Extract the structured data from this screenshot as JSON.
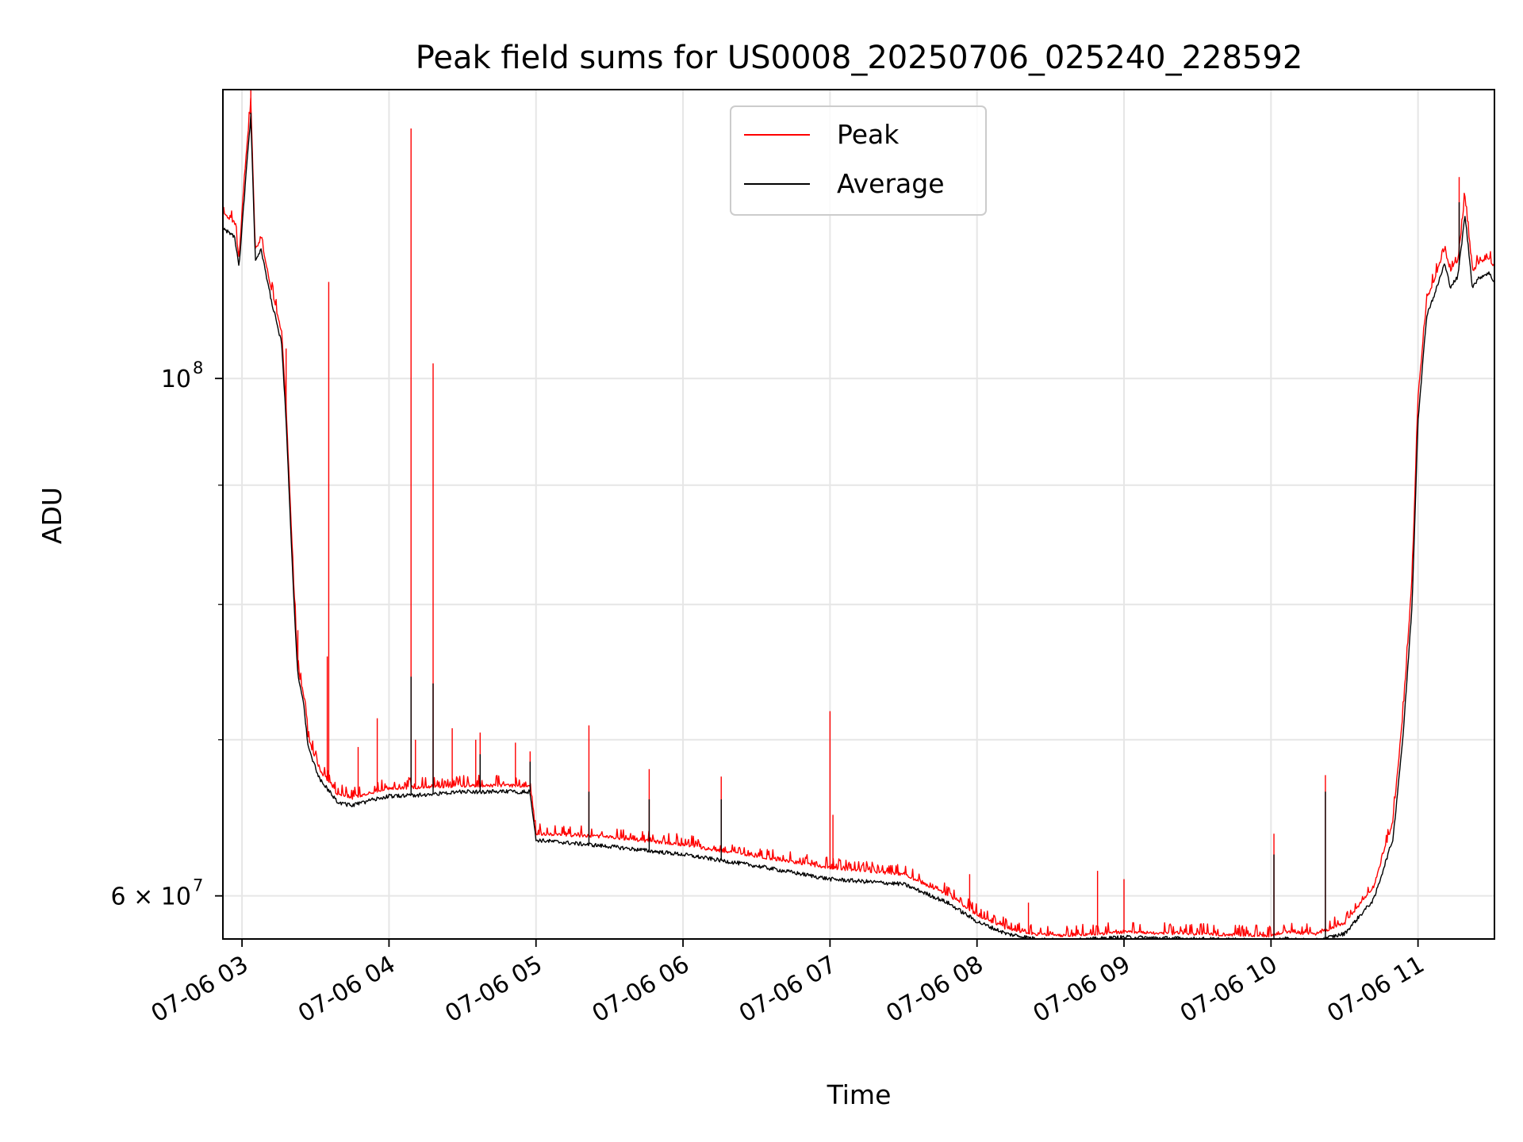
{
  "chart_data": {
    "type": "line",
    "title": "Peak field sums for US0008_20250706_025240_228592",
    "xlabel": "Time",
    "ylabel": "ADU",
    "yscale": "log",
    "xlim_hours": [
      2.87,
      11.52
    ],
    "ylim": [
      57500000,
      133000000
    ],
    "grid": true,
    "legend": {
      "placement": "upper center"
    },
    "x_ticks": [
      {
        "value": 3,
        "label": "07-06 03"
      },
      {
        "value": 4,
        "label": "07-06 04"
      },
      {
        "value": 5,
        "label": "07-06 05"
      },
      {
        "value": 6,
        "label": "07-06 06"
      },
      {
        "value": 7,
        "label": "07-06 07"
      },
      {
        "value": 8,
        "label": "07-06 08"
      },
      {
        "value": 9,
        "label": "07-06 09"
      },
      {
        "value": 10,
        "label": "07-06 10"
      },
      {
        "value": 11,
        "label": "07-06 11"
      }
    ],
    "y_major_ticks": [
      {
        "value": 60000000,
        "label_base": "6 × 10",
        "label_exp": "7"
      },
      {
        "value": 100000000,
        "label_base": "10",
        "label_exp": "8"
      }
    ],
    "y_minor_ticks": [
      70000000,
      80000000,
      90000000
    ],
    "series": [
      {
        "name": "Peak",
        "color": "#ff0000",
        "points": [
          [
            2.87,
            117500000
          ],
          [
            2.95,
            116500000
          ],
          [
            2.98,
            112500000
          ],
          [
            3.03,
            125000000
          ],
          [
            3.06,
            131000000
          ],
          [
            3.09,
            113500000
          ],
          [
            3.13,
            114500000
          ],
          [
            3.2,
            109000000
          ],
          [
            3.27,
            104500000
          ],
          [
            3.3,
            97000000
          ],
          [
            3.35,
            82000000
          ],
          [
            3.38,
            75000000
          ],
          [
            3.42,
            73000000
          ],
          [
            3.45,
            70000000
          ],
          [
            3.52,
            68000000
          ],
          [
            3.55,
            67500000
          ],
          [
            3.6,
            67000000
          ],
          [
            3.65,
            66200000
          ],
          [
            3.75,
            66000000
          ],
          [
            3.9,
            66400000
          ],
          [
            4.0,
            66600000
          ],
          [
            4.25,
            66700000
          ],
          [
            4.5,
            66800000
          ],
          [
            4.96,
            66800000
          ],
          [
            5.0,
            63700000
          ],
          [
            5.5,
            63500000
          ],
          [
            6.0,
            63000000
          ],
          [
            6.5,
            62300000
          ],
          [
            7.0,
            61600000
          ],
          [
            7.5,
            61200000
          ],
          [
            7.8,
            60000000
          ],
          [
            8.0,
            58800000
          ],
          [
            8.2,
            58000000
          ],
          [
            8.4,
            57700000
          ],
          [
            8.6,
            57600000
          ],
          [
            9.0,
            57800000
          ],
          [
            9.5,
            57700000
          ],
          [
            9.98,
            57600000
          ],
          [
            10.1,
            57800000
          ],
          [
            10.3,
            57700000
          ],
          [
            10.5,
            58300000
          ],
          [
            10.7,
            60500000
          ],
          [
            10.83,
            64500000
          ],
          [
            10.9,
            72000000
          ],
          [
            10.96,
            82000000
          ],
          [
            11.0,
            98000000
          ],
          [
            11.06,
            108000000
          ],
          [
            11.12,
            110500000
          ],
          [
            11.18,
            113500000
          ],
          [
            11.22,
            111000000
          ],
          [
            11.27,
            112000000
          ],
          [
            11.32,
            119500000
          ],
          [
            11.37,
            111000000
          ],
          [
            11.42,
            112000000
          ],
          [
            11.48,
            112500000
          ],
          [
            11.52,
            111500000
          ]
        ],
        "spikes": [
          [
            3.06,
            133000000
          ],
          [
            3.3,
            103000000
          ],
          [
            3.38,
            78000000
          ],
          [
            3.58,
            76000000
          ],
          [
            3.59,
            110000000
          ],
          [
            3.79,
            69500000
          ],
          [
            3.92,
            71500000
          ],
          [
            4.15,
            128000000
          ],
          [
            4.3,
            101500000
          ],
          [
            4.18,
            70000000
          ],
          [
            4.43,
            70800000
          ],
          [
            4.59,
            70000000
          ],
          [
            4.62,
            70500000
          ],
          [
            4.86,
            69800000
          ],
          [
            4.96,
            69200000
          ],
          [
            5.36,
            71000000
          ],
          [
            5.77,
            68000000
          ],
          [
            6.26,
            67500000
          ],
          [
            7.0,
            72000000
          ],
          [
            7.02,
            65000000
          ],
          [
            7.95,
            61300000
          ],
          [
            8.35,
            59600000
          ],
          [
            8.82,
            61500000
          ],
          [
            9.0,
            61000000
          ],
          [
            10.02,
            63800000
          ],
          [
            10.37,
            67600000
          ],
          [
            11.28,
            122000000
          ]
        ]
      },
      {
        "name": "Average",
        "color": "#000000",
        "points": [
          [
            2.87,
            116000000
          ],
          [
            2.95,
            115000000
          ],
          [
            2.98,
            111500000
          ],
          [
            3.03,
            123000000
          ],
          [
            3.06,
            129500000
          ],
          [
            3.09,
            112500000
          ],
          [
            3.13,
            113500000
          ],
          [
            3.2,
            108000000
          ],
          [
            3.27,
            103500000
          ],
          [
            3.3,
            96000000
          ],
          [
            3.35,
            81000000
          ],
          [
            3.38,
            74500000
          ],
          [
            3.42,
            72500000
          ],
          [
            3.45,
            69500000
          ],
          [
            3.52,
            67500000
          ],
          [
            3.55,
            67000000
          ],
          [
            3.6,
            66500000
          ],
          [
            3.65,
            65800000
          ],
          [
            3.75,
            65600000
          ],
          [
            3.9,
            66000000
          ],
          [
            4.0,
            66200000
          ],
          [
            4.25,
            66300000
          ],
          [
            4.5,
            66500000
          ],
          [
            4.96,
            66500000
          ],
          [
            5.0,
            63400000
          ],
          [
            5.5,
            63000000
          ],
          [
            6.0,
            62500000
          ],
          [
            6.5,
            61800000
          ],
          [
            7.0,
            61000000
          ],
          [
            7.5,
            60700000
          ],
          [
            7.8,
            59600000
          ],
          [
            8.0,
            58500000
          ],
          [
            8.2,
            57800000
          ],
          [
            8.4,
            57500000
          ],
          [
            8.6,
            57400000
          ],
          [
            9.0,
            57600000
          ],
          [
            9.5,
            57500000
          ],
          [
            9.98,
            57400000
          ],
          [
            10.1,
            57500000
          ],
          [
            10.3,
            57400000
          ],
          [
            10.5,
            57800000
          ],
          [
            10.7,
            59800000
          ],
          [
            10.83,
            63500000
          ],
          [
            10.9,
            70500000
          ],
          [
            10.96,
            80000000
          ],
          [
            11.0,
            96000000
          ],
          [
            11.06,
            106500000
          ],
          [
            11.12,
            109000000
          ],
          [
            11.18,
            112000000
          ],
          [
            11.22,
            109500000
          ],
          [
            11.27,
            110500000
          ],
          [
            11.32,
            117500000
          ],
          [
            11.37,
            109500000
          ],
          [
            11.42,
            110500000
          ],
          [
            11.48,
            111000000
          ],
          [
            11.52,
            110000000
          ]
        ],
        "spikes": [
          [
            3.06,
            130000000
          ],
          [
            4.15,
            74500000
          ],
          [
            4.3,
            74000000
          ],
          [
            4.62,
            69000000
          ],
          [
            4.96,
            68500000
          ],
          [
            5.36,
            66500000
          ],
          [
            5.77,
            66000000
          ],
          [
            6.26,
            66000000
          ],
          [
            10.02,
            62500000
          ],
          [
            10.37,
            66500000
          ],
          [
            11.28,
            119000000
          ]
        ]
      }
    ]
  }
}
